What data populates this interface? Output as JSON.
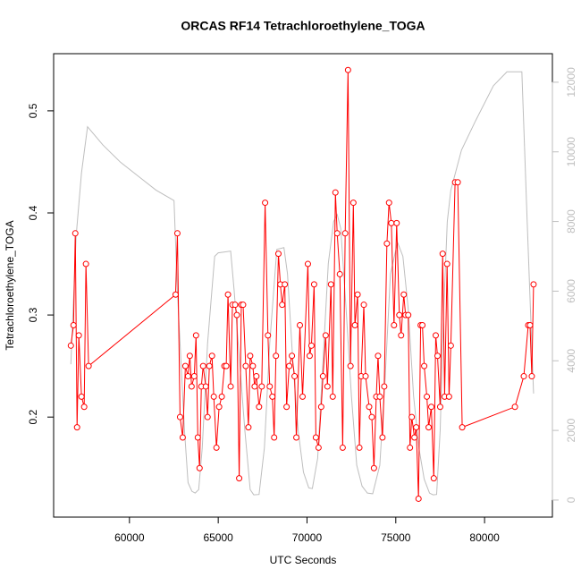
{
  "chart_data": {
    "type": "line",
    "title": "ORCAS RF14 Tetrachloroethylene_TOGA",
    "x_label": "UTC Seconds",
    "y_label": "Tetrachloroethylene_TOGA",
    "xlim": [
      55730,
      83820
    ],
    "ylim": [
      0.102,
      0.556
    ],
    "y2lim": [
      -490,
      12820
    ],
    "xticks": [
      60000,
      65000,
      70000,
      75000,
      80000
    ],
    "yticks": [
      0.2,
      0.3,
      0.4,
      0.5
    ],
    "y2ticks": [
      0,
      2000,
      4000,
      6000,
      8000,
      10000,
      12000
    ],
    "series": [
      {
        "color": "#ff0000",
        "markers": true,
        "x": [
          56700,
          56850,
          56950,
          57050,
          57150,
          57300,
          57450,
          57550,
          57700,
          62600,
          62700,
          62850,
          63000,
          63150,
          63300,
          63400,
          63500,
          63650,
          63750,
          63850,
          63950,
          64050,
          64150,
          64300,
          64400,
          64500,
          64650,
          64750,
          64900,
          65050,
          65200,
          65350,
          65450,
          65550,
          65700,
          65800,
          65950,
          66050,
          66180,
          66300,
          66400,
          66550,
          66700,
          66800,
          66950,
          67050,
          67150,
          67300,
          67450,
          67640,
          67800,
          67900,
          68050,
          68150,
          68250,
          68390,
          68500,
          68600,
          68750,
          68850,
          69000,
          69150,
          69300,
          69400,
          69600,
          69750,
          70050,
          70150,
          70250,
          70400,
          70500,
          70650,
          70800,
          70900,
          71050,
          71150,
          71350,
          71450,
          71600,
          71700,
          71850,
          72010,
          72150,
          72310,
          72450,
          72610,
          72700,
          72850,
          72950,
          73050,
          73200,
          73300,
          73500,
          73650,
          73770,
          73900,
          74000,
          74100,
          74250,
          74350,
          74500,
          74620,
          74750,
          74900,
          75050,
          75200,
          75300,
          75450,
          75550,
          75700,
          75800,
          75900,
          76050,
          76150,
          76280,
          76400,
          76500,
          76600,
          76750,
          76850,
          77000,
          77140,
          77250,
          77350,
          77500,
          77640,
          77750,
          77890,
          78000,
          78100,
          78340,
          78490,
          78740,
          81710,
          82210,
          82460,
          82560,
          82660,
          82760
        ],
        "values": [
          0.27,
          0.29,
          0.38,
          0.19,
          0.28,
          0.22,
          0.21,
          0.35,
          0.25,
          0.32,
          0.38,
          0.2,
          0.18,
          0.25,
          0.24,
          0.26,
          0.23,
          0.24,
          0.28,
          0.18,
          0.15,
          0.23,
          0.25,
          0.23,
          0.2,
          0.25,
          0.26,
          0.22,
          0.17,
          0.21,
          0.22,
          0.25,
          0.25,
          0.32,
          0.23,
          0.31,
          0.31,
          0.3,
          0.14,
          0.31,
          0.31,
          0.25,
          0.19,
          0.26,
          0.25,
          0.23,
          0.24,
          0.21,
          0.23,
          0.41,
          0.28,
          0.23,
          0.22,
          0.18,
          0.26,
          0.36,
          0.33,
          0.31,
          0.33,
          0.21,
          0.25,
          0.26,
          0.24,
          0.18,
          0.29,
          0.22,
          0.35,
          0.26,
          0.27,
          0.33,
          0.18,
          0.17,
          0.21,
          0.24,
          0.28,
          0.23,
          0.33,
          0.22,
          0.42,
          0.38,
          0.34,
          0.17,
          0.38,
          0.54,
          0.25,
          0.41,
          0.29,
          0.32,
          0.17,
          0.24,
          0.31,
          0.24,
          0.21,
          0.2,
          0.15,
          0.22,
          0.26,
          0.22,
          0.18,
          0.23,
          0.37,
          0.41,
          0.39,
          0.29,
          0.39,
          0.3,
          0.28,
          0.32,
          0.3,
          0.3,
          0.17,
          0.2,
          0.18,
          0.19,
          0.12,
          0.29,
          0.29,
          0.25,
          0.22,
          0.19,
          0.21,
          0.14,
          0.28,
          0.26,
          0.21,
          0.36,
          0.22,
          0.35,
          0.22,
          0.27,
          0.43,
          0.43,
          0.19,
          0.21,
          0.24,
          0.29,
          0.29,
          0.24,
          0.33
        ]
      },
      {
        "color": "#bebebe",
        "axis": "y2",
        "markers": false,
        "x": [
          56700,
          57000,
          57300,
          57640,
          58500,
          59500,
          60500,
          61500,
          62510,
          62700,
          62900,
          63100,
          63300,
          63520,
          63700,
          63900,
          64100,
          64400,
          64800,
          65000,
          65700,
          65900,
          66200,
          66500,
          66800,
          67000,
          67300,
          67600,
          67900,
          68300,
          68700,
          68900,
          69200,
          69500,
          69800,
          70100,
          70300,
          70600,
          70900,
          71200,
          71500,
          71700,
          71900,
          72200,
          72500,
          72800,
          73100,
          73400,
          73700,
          74100,
          74400,
          74700,
          75100,
          75400,
          75700,
          76000,
          76300,
          76600,
          76900,
          77100,
          77300,
          77500,
          77700,
          77900,
          78100,
          78700,
          79500,
          80500,
          81260,
          82100,
          82400,
          82760
        ],
        "values": [
          3900,
          7600,
          9400,
          10720,
          10200,
          9700,
          9300,
          8900,
          8600,
          6000,
          4000,
          2000,
          500,
          250,
          200,
          300,
          1500,
          4500,
          7000,
          7100,
          7150,
          6000,
          4000,
          2000,
          300,
          150,
          160,
          1500,
          4500,
          7200,
          7250,
          6500,
          4000,
          2000,
          800,
          350,
          330,
          1200,
          4000,
          6800,
          8000,
          8200,
          7800,
          5500,
          3000,
          1000,
          400,
          200,
          180,
          1000,
          3500,
          6500,
          7400,
          7000,
          5500,
          3000,
          1500,
          600,
          200,
          150,
          160,
          2000,
          5500,
          8000,
          8900,
          10050,
          10900,
          11900,
          12300,
          12300,
          8000,
          3060
        ]
      }
    ]
  }
}
